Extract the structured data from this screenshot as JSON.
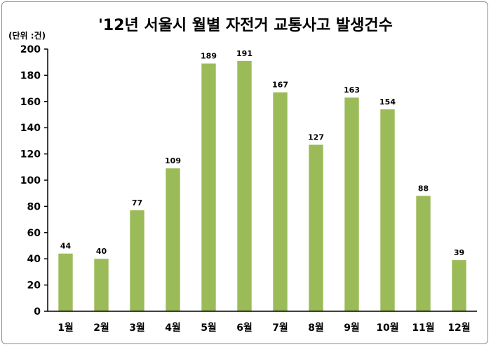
{
  "chart_data": {
    "type": "bar",
    "title": "'12년 서울시 월별 자전거 교통사고 발생건수",
    "unit_label": "(단위 :건)",
    "categories": [
      "1월",
      "2월",
      "3월",
      "4월",
      "5월",
      "6월",
      "7월",
      "8월",
      "9월",
      "10월",
      "11월",
      "12월"
    ],
    "values": [
      44,
      40,
      77,
      109,
      189,
      191,
      167,
      127,
      163,
      154,
      88,
      39
    ],
    "ylim": [
      0,
      200
    ],
    "yticks": [
      0,
      20,
      40,
      60,
      80,
      100,
      120,
      140,
      160,
      180,
      200
    ],
    "grid": false,
    "legend": "none",
    "bar_color": "#9bbb59"
  }
}
